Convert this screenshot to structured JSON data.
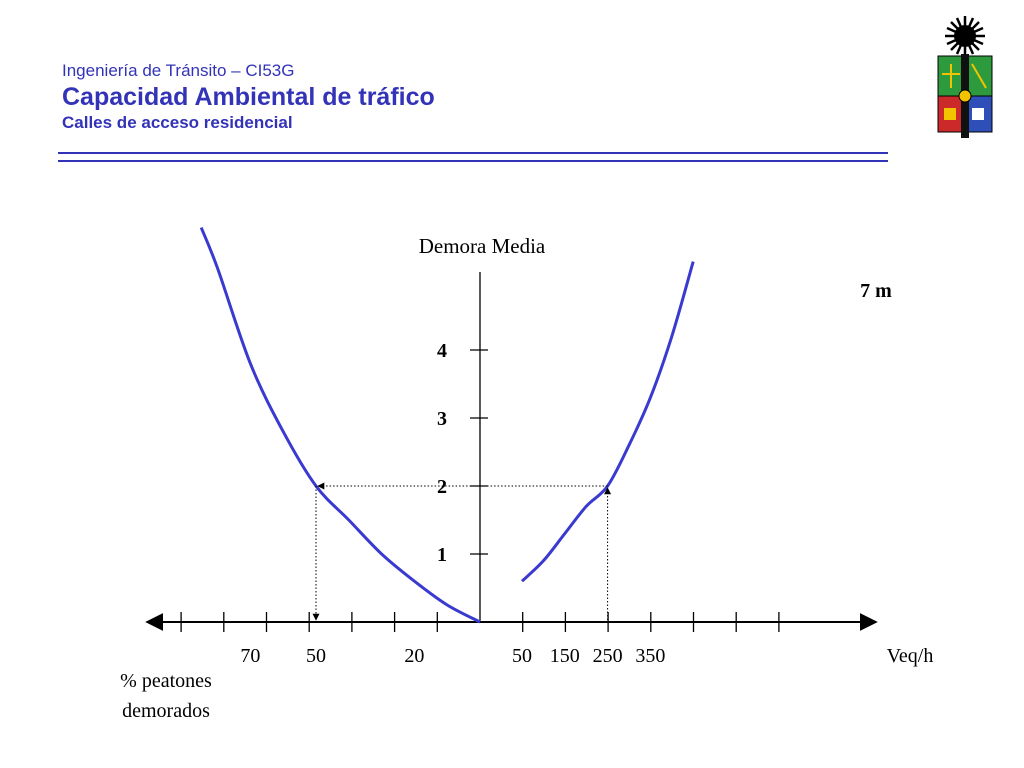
{
  "header": {
    "course": "Ingeniería de Tránsito – CI53G",
    "title": "Capacidad Ambiental de tráfico",
    "subtitle": "Calles de acceso residencial"
  },
  "colors": {
    "accent": "#3333b8",
    "curve": "#3a3ad0",
    "axis": "#000000"
  },
  "logo": {
    "icon": "university-crest-icon"
  },
  "chart_data": {
    "type": "line",
    "y_label": "Demora Media",
    "y_ticks": [
      "1",
      "2",
      "3",
      "4"
    ],
    "right_axis": {
      "label": "Veq/h",
      "tick_labels": [
        {
          "value": 50,
          "label": "50"
        },
        {
          "value": 150,
          "label": "150"
        },
        {
          "value": 250,
          "label": "250"
        },
        {
          "value": 350,
          "label": "350"
        }
      ]
    },
    "left_axis": {
      "label_line1": "% peatones",
      "label_line2": "demorados",
      "tick_labels": [
        {
          "value": 70,
          "label": "70"
        },
        {
          "value": 50,
          "label": "50"
        },
        {
          "value": 20,
          "label": "20"
        }
      ]
    },
    "series": [
      {
        "name": "7 m",
        "axis": "right",
        "points": [
          [
            50,
            0.6
          ],
          [
            100,
            0.9
          ],
          [
            150,
            1.3
          ],
          [
            200,
            1.7
          ],
          [
            250,
            2.0
          ],
          [
            300,
            2.6
          ],
          [
            350,
            3.3
          ],
          [
            400,
            4.2
          ],
          [
            450,
            5.3
          ]
        ]
      },
      {
        "axis": "left",
        "points": [
          [
            0,
            0
          ],
          [
            10,
            0.25
          ],
          [
            20,
            0.6
          ],
          [
            30,
            1.0
          ],
          [
            40,
            1.5
          ],
          [
            50,
            2.0
          ],
          [
            60,
            2.8
          ],
          [
            70,
            3.8
          ],
          [
            80,
            5.2
          ],
          [
            85,
            5.8
          ]
        ]
      }
    ],
    "reading_guide": {
      "veq": 250,
      "demora": 2,
      "peatones": 50
    }
  }
}
